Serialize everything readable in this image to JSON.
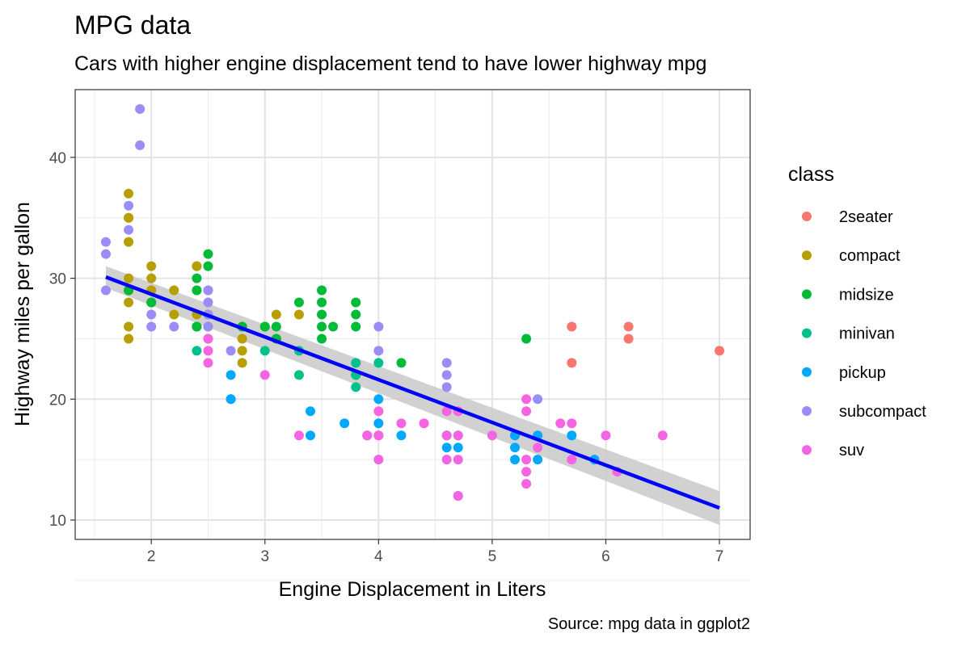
{
  "chart_data": {
    "type": "scatter",
    "title": "MPG data",
    "subtitle": "Cars with higher engine displacement tend to have lower highway mpg",
    "xlabel": "Engine Displacement in Liters",
    "ylabel": "Highway miles per gallon",
    "caption": "Source: mpg data in ggplot2",
    "xlim": [
      1.33,
      7.27
    ],
    "ylim": [
      8.4,
      45.6
    ],
    "xticks": [
      2,
      3,
      4,
      5,
      6,
      7
    ],
    "yticks": [
      10,
      20,
      30,
      40
    ],
    "grid": true,
    "legend": {
      "title": "class",
      "placement": "right"
    },
    "series": [
      {
        "name": "2seater",
        "color": "#F8766D",
        "points": [
          [
            5.7,
            26
          ],
          [
            5.7,
            23
          ],
          [
            6.2,
            26
          ],
          [
            6.2,
            25
          ],
          [
            7.0,
            24
          ]
        ]
      },
      {
        "name": "compact",
        "color": "#B79F00",
        "points": [
          [
            1.8,
            29
          ],
          [
            1.8,
            29
          ],
          [
            2.0,
            31
          ],
          [
            2.0,
            30
          ],
          [
            2.8,
            26
          ],
          [
            2.8,
            26
          ],
          [
            3.1,
            27
          ],
          [
            1.8,
            26
          ],
          [
            1.8,
            25
          ],
          [
            1.8,
            28
          ],
          [
            1.8,
            33
          ],
          [
            2.0,
            28
          ],
          [
            2.0,
            29
          ],
          [
            2.8,
            25
          ],
          [
            3.1,
            25
          ],
          [
            2.2,
            29
          ],
          [
            2.2,
            27
          ],
          [
            2.4,
            31
          ],
          [
            2.4,
            31
          ],
          [
            3.0,
            26
          ],
          [
            3.0,
            26
          ],
          [
            3.3,
            27
          ],
          [
            1.8,
            37
          ],
          [
            1.8,
            35
          ],
          [
            1.8,
            35
          ],
          [
            2.0,
            29
          ],
          [
            2.5,
            29
          ],
          [
            2.5,
            25
          ],
          [
            2.5,
            26
          ],
          [
            2.8,
            23
          ],
          [
            2.8,
            24
          ],
          [
            1.8,
            30
          ],
          [
            2.4,
            29
          ],
          [
            2.4,
            27
          ]
        ]
      },
      {
        "name": "midsize",
        "color": "#00BA38",
        "points": [
          [
            2.4,
            30
          ],
          [
            2.4,
            26
          ],
          [
            2.4,
            29
          ],
          [
            3.1,
            26
          ],
          [
            3.5,
            29
          ],
          [
            3.5,
            28
          ],
          [
            3.6,
            26
          ],
          [
            2.5,
            32
          ],
          [
            2.5,
            31
          ],
          [
            2.5,
            27
          ],
          [
            3.0,
            26
          ],
          [
            3.3,
            28
          ],
          [
            3.5,
            25
          ],
          [
            3.5,
            27
          ],
          [
            3.8,
            26
          ],
          [
            3.8,
            27
          ],
          [
            3.8,
            28
          ],
          [
            2.4,
            26
          ],
          [
            3.1,
            25
          ],
          [
            3.5,
            26
          ],
          [
            1.8,
            29
          ],
          [
            2.0,
            28
          ],
          [
            2.8,
            26
          ],
          [
            5.3,
            25
          ],
          [
            4.2,
            23
          ],
          [
            3.8,
            22
          ]
        ]
      },
      {
        "name": "minivan",
        "color": "#00C08B",
        "points": [
          [
            2.4,
            24
          ],
          [
            3.0,
            24
          ],
          [
            3.3,
            22
          ],
          [
            3.3,
            24
          ],
          [
            3.8,
            22
          ],
          [
            3.8,
            21
          ],
          [
            4.0,
            23
          ],
          [
            3.8,
            23
          ]
        ]
      },
      {
        "name": "pickup",
        "color": "#00A9FF",
        "points": [
          [
            2.7,
            20
          ],
          [
            2.7,
            22
          ],
          [
            2.7,
            20
          ],
          [
            3.4,
            17
          ],
          [
            3.4,
            19
          ],
          [
            3.7,
            18
          ],
          [
            3.9,
            17
          ],
          [
            4.0,
            20
          ],
          [
            4.0,
            18
          ],
          [
            4.2,
            17
          ],
          [
            4.6,
            17
          ],
          [
            4.6,
            16
          ],
          [
            4.7,
            17
          ],
          [
            4.7,
            16
          ],
          [
            4.7,
            12
          ],
          [
            5.2,
            16
          ],
          [
            5.2,
            15
          ],
          [
            5.4,
            17
          ],
          [
            5.4,
            15
          ],
          [
            5.7,
            17
          ],
          [
            5.9,
            15
          ],
          [
            5.2,
            17
          ]
        ]
      },
      {
        "name": "subcompact",
        "color": "#9B8DF7",
        "points": [
          [
            1.6,
            33
          ],
          [
            1.6,
            32
          ],
          [
            1.6,
            29
          ],
          [
            1.8,
            34
          ],
          [
            1.8,
            36
          ],
          [
            1.9,
            44
          ],
          [
            1.9,
            41
          ],
          [
            2.0,
            26
          ],
          [
            2.0,
            27
          ],
          [
            2.2,
            26
          ],
          [
            2.5,
            26
          ],
          [
            2.5,
            28
          ],
          [
            2.5,
            29
          ],
          [
            2.7,
            24
          ],
          [
            4.0,
            26
          ],
          [
            4.0,
            24
          ],
          [
            4.6,
            23
          ],
          [
            4.6,
            21
          ],
          [
            4.6,
            22
          ],
          [
            4.7,
            19
          ],
          [
            5.4,
            20
          ],
          [
            2.5,
            27
          ]
        ]
      },
      {
        "name": "suv",
        "color": "#F564E3",
        "points": [
          [
            2.5,
            25
          ],
          [
            2.5,
            24
          ],
          [
            2.5,
            23
          ],
          [
            3.0,
            22
          ],
          [
            3.3,
            17
          ],
          [
            4.0,
            19
          ],
          [
            4.0,
            17
          ],
          [
            4.0,
            15
          ],
          [
            4.2,
            18
          ],
          [
            4.4,
            18
          ],
          [
            4.6,
            19
          ],
          [
            4.6,
            17
          ],
          [
            4.6,
            15
          ],
          [
            4.7,
            17
          ],
          [
            4.7,
            15
          ],
          [
            4.7,
            19
          ],
          [
            4.7,
            12
          ],
          [
            5.0,
            17
          ],
          [
            5.3,
            20
          ],
          [
            5.3,
            19
          ],
          [
            5.3,
            14
          ],
          [
            5.3,
            13
          ],
          [
            5.3,
            15
          ],
          [
            5.4,
            16
          ],
          [
            5.6,
            18
          ],
          [
            5.7,
            18
          ],
          [
            5.7,
            15
          ],
          [
            6.0,
            17
          ],
          [
            6.1,
            14
          ],
          [
            6.5,
            17
          ],
          [
            4.0,
            17
          ],
          [
            3.9,
            17
          ]
        ]
      }
    ],
    "trend": {
      "name": "linear fit",
      "color": "#0000FF",
      "band_color": "#C9C9C9",
      "x": [
        1.6,
        7.0
      ],
      "y": [
        30.1,
        11.0
      ],
      "ci_upper": [
        31.0,
        12.4
      ],
      "ci_lower": [
        29.2,
        9.6
      ]
    }
  }
}
